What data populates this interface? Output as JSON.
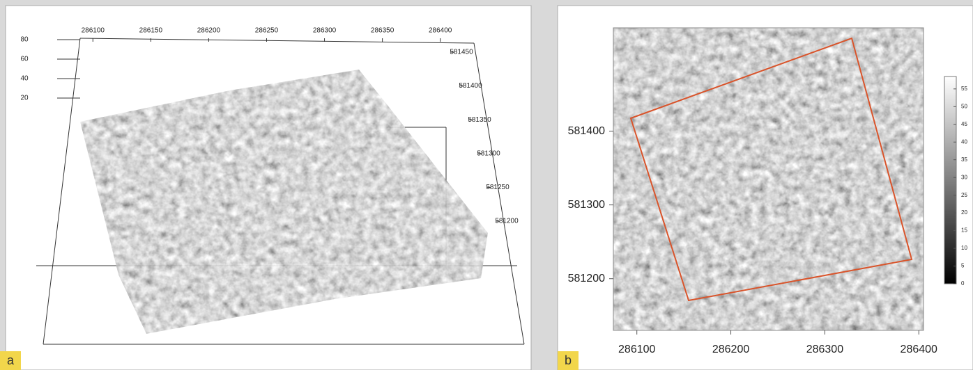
{
  "chart_data": [
    {
      "type": "point-cloud-3d",
      "panel_label": "a",
      "xlim": [
        286089,
        286405
      ],
      "xticks": [
        286100,
        286150,
        286200,
        286250,
        286300,
        286350,
        286400
      ],
      "ylim": [
        581200,
        581450
      ],
      "yticks": [
        581450,
        581400,
        581350,
        581300,
        581250,
        581200
      ],
      "zlim": [
        20,
        80
      ],
      "zticks": [
        80,
        60,
        40,
        20
      ]
    },
    {
      "type": "heatmap",
      "panel_label": "b",
      "xlim": [
        286075,
        286405
      ],
      "xticks": [
        286100,
        286200,
        286300,
        286400
      ],
      "ylim": [
        581130,
        581540
      ],
      "yticks": [
        581400,
        581300,
        581200
      ],
      "colorbar_lim": [
        0,
        58.5
      ],
      "colorbar_ticks": [
        55,
        50,
        45,
        40,
        35,
        30,
        25,
        20,
        15,
        10,
        5,
        0
      ],
      "outline_color": "#d9542b"
    }
  ]
}
